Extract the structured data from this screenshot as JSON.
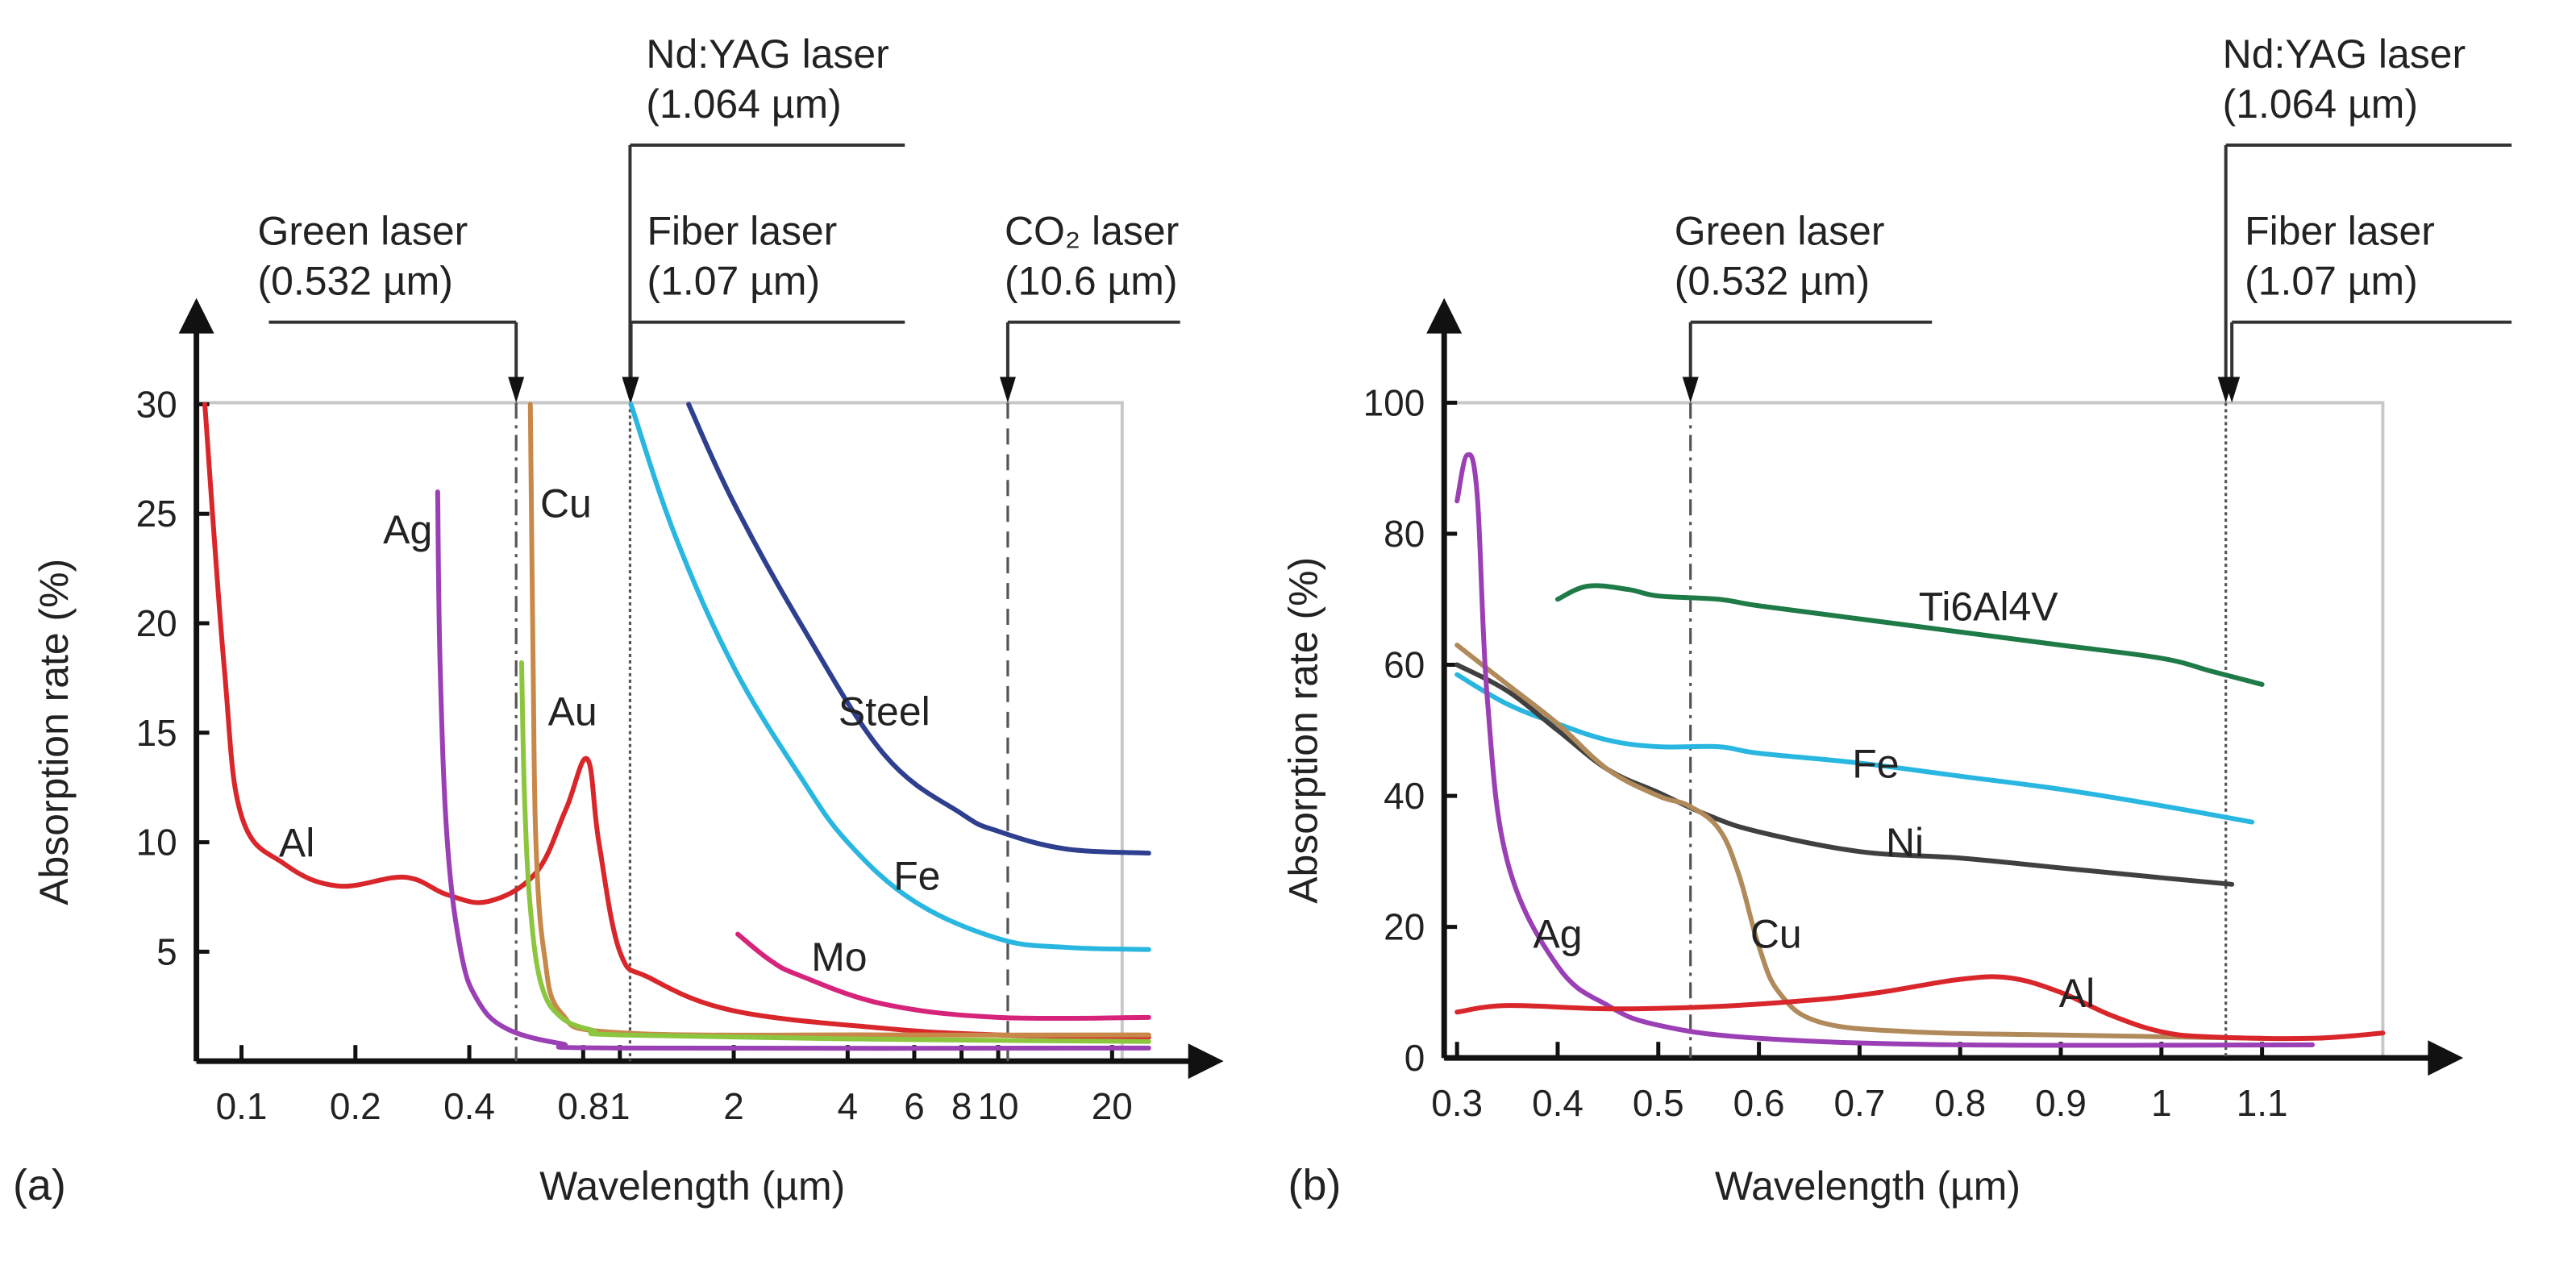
{
  "chart_data": [
    {
      "panel": "(a)",
      "type": "line",
      "xscale": "log",
      "xlabel": "Wavelength (µm)",
      "ylabel": "Absorption rate (%)",
      "xlim": [
        0.08,
        25
      ],
      "ylim": [
        0,
        30
      ],
      "yticks": [
        5,
        10,
        15,
        20,
        25,
        30
      ],
      "xticks": [
        {
          "v": 0.1,
          "t": "0.1"
        },
        {
          "v": 0.2,
          "t": "0.2"
        },
        {
          "v": 0.4,
          "t": "0.4"
        },
        {
          "v": 0.8,
          "t": "0.8"
        },
        {
          "v": 1,
          "t": "1"
        },
        {
          "v": 2,
          "t": "2"
        },
        {
          "v": 4,
          "t": "4"
        },
        {
          "v": 6,
          "t": "6"
        },
        {
          "v": 8,
          "t": "8"
        },
        {
          "v": 10,
          "t": "10"
        },
        {
          "v": 20,
          "t": "20"
        }
      ],
      "lasers": [
        {
          "name": "Green laser",
          "wl_text": "(0.532 µm)",
          "x": 0.532,
          "style": "dashdot",
          "level": "low"
        },
        {
          "name": "Nd:YAG laser",
          "wl_text": "(1.064 µm)",
          "x": 1.064,
          "style": "dotted",
          "level": "high"
        },
        {
          "name": "Fiber laser",
          "wl_text": "(1.07 µm)",
          "x": 1.07,
          "style": "none",
          "level": "low"
        },
        {
          "name": "CO₂ laser",
          "wl_text": "(10.6 µm)",
          "x": 10.6,
          "style": "dashed",
          "level": "low"
        }
      ],
      "series": [
        {
          "name": "Al",
          "color": "#d9262b",
          "label_at": [
            0.14,
            10
          ],
          "points": [
            [
              0.08,
              30
            ],
            [
              0.09,
              18
            ],
            [
              0.1,
              11.2
            ],
            [
              0.13,
              9
            ],
            [
              0.18,
              8
            ],
            [
              0.27,
              8.4
            ],
            [
              0.35,
              7.6
            ],
            [
              0.45,
              7.3
            ],
            [
              0.6,
              8.6
            ],
            [
              0.72,
              11.5
            ],
            [
              0.82,
              13.8
            ],
            [
              0.88,
              10
            ],
            [
              1.0,
              5
            ],
            [
              1.2,
              3.8
            ],
            [
              2,
              2.3
            ],
            [
              5,
              1.5
            ],
            [
              10,
              1.2
            ],
            [
              25,
              1.1
            ]
          ]
        },
        {
          "name": "Ag",
          "color": "#9b3fb5",
          "label_at": [
            0.275,
            24.3
          ],
          "points": [
            [
              0.33,
              26
            ],
            [
              0.335,
              18
            ],
            [
              0.35,
              10
            ],
            [
              0.38,
              5
            ],
            [
              0.42,
              2.8
            ],
            [
              0.5,
              1.5
            ],
            [
              0.7,
              0.8
            ],
            [
              1,
              0.6
            ],
            [
              25,
              0.6
            ]
          ]
        },
        {
          "name": "Cu",
          "color": "#c8884a",
          "label_at": [
            0.72,
            25.5
          ],
          "points": [
            [
              0.58,
              30
            ],
            [
              0.59,
              18
            ],
            [
              0.6,
              10
            ],
            [
              0.63,
              5
            ],
            [
              0.7,
              2.2
            ],
            [
              1,
              1.3
            ],
            [
              5,
              1.2
            ],
            [
              25,
              1.2
            ]
          ]
        },
        {
          "name": "Au",
          "color": "#8cc63f",
          "label_at": [
            0.75,
            16
          ],
          "points": [
            [
              0.55,
              18.2
            ],
            [
              0.56,
              12
            ],
            [
              0.58,
              7
            ],
            [
              0.62,
              3.5
            ],
            [
              0.7,
              2
            ],
            [
              0.85,
              1.4
            ],
            [
              1,
              1.2
            ],
            [
              5,
              1
            ],
            [
              25,
              0.9
            ]
          ]
        },
        {
          "name": "Steel",
          "color": "#2e3f8f",
          "label_at": [
            5.0,
            16
          ],
          "points": [
            [
              1.52,
              30
            ],
            [
              2,
              25.5
            ],
            [
              3,
              20
            ],
            [
              5,
              14
            ],
            [
              8,
              11.3
            ],
            [
              10,
              10.5
            ],
            [
              15,
              9.7
            ],
            [
              25,
              9.5
            ]
          ]
        },
        {
          "name": "Fe",
          "color": "#29b6e0",
          "label_at": [
            6.1,
            8.5
          ],
          "points": [
            [
              1.07,
              30
            ],
            [
              1.4,
              24
            ],
            [
              2,
              18
            ],
            [
              3,
              13
            ],
            [
              4,
              10
            ],
            [
              6,
              7.3
            ],
            [
              10,
              5.6
            ],
            [
              15,
              5.2
            ],
            [
              25,
              5.1
            ]
          ]
        },
        {
          "name": "Mo",
          "color": "#d6247a",
          "label_at": [
            3.8,
            4.8
          ],
          "points": [
            [
              2.05,
              5.8
            ],
            [
              2.5,
              4.6
            ],
            [
              3,
              3.9
            ],
            [
              5,
              2.6
            ],
            [
              10,
              2
            ],
            [
              25,
              2
            ]
          ]
        }
      ]
    },
    {
      "panel": "(b)",
      "type": "line",
      "xscale": "linear",
      "xlabel": "Wavelength (µm)",
      "ylabel": "Absorption rate (%)",
      "xlim": [
        0.3,
        1.22
      ],
      "ylim": [
        0,
        100
      ],
      "yticks": [
        0,
        20,
        40,
        60,
        80,
        100
      ],
      "xticks": [
        {
          "v": 0.3,
          "t": "0.3"
        },
        {
          "v": 0.4,
          "t": "0.4"
        },
        {
          "v": 0.5,
          "t": "0.5"
        },
        {
          "v": 0.6,
          "t": "0.6"
        },
        {
          "v": 0.7,
          "t": "0.7"
        },
        {
          "v": 0.8,
          "t": "0.8"
        },
        {
          "v": 0.9,
          "t": "0.9"
        },
        {
          "v": 1.0,
          "t": "1"
        },
        {
          "v": 1.1,
          "t": "1.1"
        }
      ],
      "lasers": [
        {
          "name": "Green laser",
          "wl_text": "(0.532 µm)",
          "x": 0.532,
          "style": "dashdot",
          "level": "low"
        },
        {
          "name": "Nd:YAG laser",
          "wl_text": "(1.064 µm)",
          "x": 1.064,
          "style": "dotted",
          "level": "high"
        },
        {
          "name": "Fiber laser",
          "wl_text": "(1.07 µm)",
          "x": 1.07,
          "style": "none",
          "level": "low"
        }
      ],
      "series": [
        {
          "name": "Ti6Al4V",
          "color": "#1e7a46",
          "label_at": [
            0.828,
            69
          ],
          "points": [
            [
              0.4,
              70
            ],
            [
              0.43,
              72
            ],
            [
              0.47,
              71.5
            ],
            [
              0.5,
              70.5
            ],
            [
              0.56,
              70
            ],
            [
              0.6,
              69
            ],
            [
              0.7,
              67
            ],
            [
              0.8,
              65
            ],
            [
              0.9,
              63
            ],
            [
              1.0,
              61
            ],
            [
              1.05,
              59
            ],
            [
              1.1,
              57
            ]
          ]
        },
        {
          "name": "Fe",
          "color": "#29b6e0",
          "label_at": [
            0.716,
            45
          ],
          "points": [
            [
              0.3,
              58.5
            ],
            [
              0.35,
              54
            ],
            [
              0.4,
              51
            ],
            [
              0.45,
              48.5
            ],
            [
              0.5,
              47.5
            ],
            [
              0.56,
              47.5
            ],
            [
              0.6,
              46.5
            ],
            [
              0.7,
              45
            ],
            [
              0.8,
              43
            ],
            [
              0.9,
              41
            ],
            [
              1.0,
              38.5
            ],
            [
              1.09,
              36
            ]
          ]
        },
        {
          "name": "Ni",
          "color": "#404040",
          "label_at": [
            0.745,
            33
          ],
          "points": [
            [
              0.3,
              60
            ],
            [
              0.35,
              56
            ],
            [
              0.4,
              50
            ],
            [
              0.45,
              44
            ],
            [
              0.5,
              40.5
            ],
            [
              0.55,
              37
            ],
            [
              0.6,
              34.5
            ],
            [
              0.7,
              31.5
            ],
            [
              0.8,
              30.5
            ],
            [
              0.9,
              29
            ],
            [
              1.0,
              27.5
            ],
            [
              1.07,
              26.5
            ]
          ]
        },
        {
          "name": "Cu",
          "color": "#b08a5a",
          "label_at": [
            0.617,
            19
          ],
          "points": [
            [
              0.3,
              63
            ],
            [
              0.35,
              57
            ],
            [
              0.4,
              51
            ],
            [
              0.45,
              44
            ],
            [
              0.5,
              40
            ],
            [
              0.53,
              38.5
            ],
            [
              0.56,
              35
            ],
            [
              0.58,
              28
            ],
            [
              0.6,
              17
            ],
            [
              0.62,
              10
            ],
            [
              0.66,
              5.5
            ],
            [
              0.75,
              4
            ],
            [
              0.9,
              3.5
            ],
            [
              1.1,
              3
            ]
          ]
        },
        {
          "name": "Ag",
          "color": "#9b3fb5",
          "label_at": [
            0.4,
            19
          ],
          "points": [
            [
              0.3,
              85
            ],
            [
              0.31,
              92
            ],
            [
              0.32,
              86
            ],
            [
              0.33,
              55
            ],
            [
              0.35,
              30
            ],
            [
              0.4,
              14
            ],
            [
              0.45,
              8
            ],
            [
              0.5,
              5
            ],
            [
              0.6,
              3
            ],
            [
              0.8,
              2
            ],
            [
              1.15,
              2
            ]
          ]
        },
        {
          "name": "Al",
          "color": "#d9262b",
          "label_at": [
            0.916,
            10
          ],
          "points": [
            [
              0.3,
              7
            ],
            [
              0.35,
              8
            ],
            [
              0.45,
              7.5
            ],
            [
              0.55,
              7.8
            ],
            [
              0.65,
              8.8
            ],
            [
              0.72,
              10
            ],
            [
              0.8,
              12
            ],
            [
              0.85,
              12.2
            ],
            [
              0.9,
              10
            ],
            [
              0.95,
              6.5
            ],
            [
              1.0,
              4
            ],
            [
              1.05,
              3.2
            ],
            [
              1.15,
              3
            ],
            [
              1.22,
              3.8
            ]
          ]
        }
      ]
    }
  ]
}
